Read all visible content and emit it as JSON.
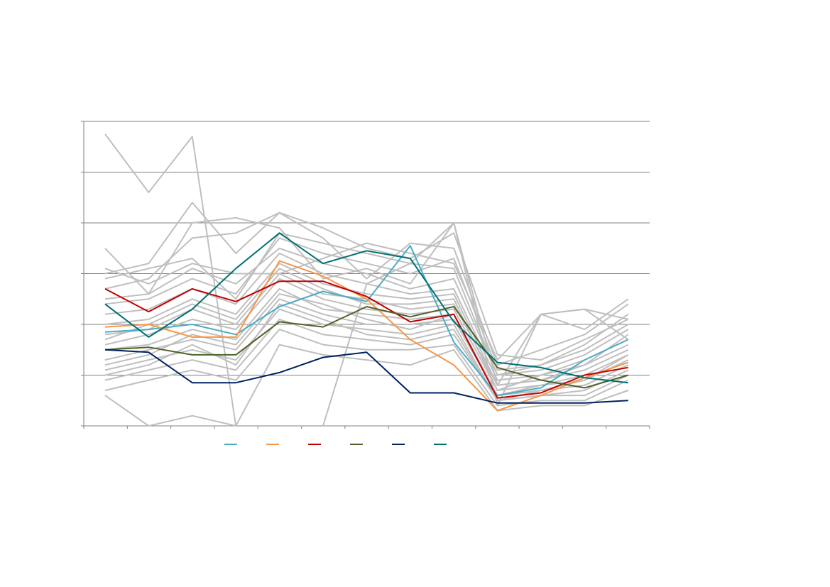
{
  "chart_data": {
    "type": "line",
    "title": "",
    "xlabel": "",
    "ylabel": "",
    "x": [
      1,
      2,
      3,
      4,
      5,
      6,
      7,
      8,
      9,
      10,
      11,
      12,
      13
    ],
    "ylim": [
      0,
      6
    ],
    "y_gridlines": [
      1,
      2,
      3,
      4,
      5,
      6
    ],
    "grid": true,
    "legend_position": "bottom",
    "background_series_color": "#bfbfbf",
    "background_series": [
      [
        5.75,
        4.6,
        5.7,
        0.0,
        0.0,
        0.0,
        2.8,
        3.2,
        4.0,
        0.4,
        2.2,
        2.3,
        1.7
      ],
      [
        3.0,
        3.2,
        4.4,
        3.4,
        4.2,
        3.7,
        2.9,
        3.6,
        3.5,
        1.2,
        1.5,
        1.8,
        2.4
      ],
      [
        3.5,
        2.6,
        4.0,
        4.1,
        3.9,
        2.9,
        3.1,
        2.8,
        4.0,
        0.8,
        2.2,
        2.3,
        2.1
      ],
      [
        2.9,
        3.1,
        3.3,
        2.5,
        3.8,
        3.6,
        3.4,
        3.2,
        3.1,
        1.0,
        1.2,
        1.5,
        2.0
      ],
      [
        2.5,
        2.6,
        3.1,
        2.8,
        3.5,
        3.2,
        3.0,
        2.7,
        2.9,
        1.0,
        1.1,
        1.4,
        1.9
      ],
      [
        2.2,
        2.3,
        2.7,
        2.4,
        3.4,
        3.0,
        2.8,
        2.6,
        2.7,
        0.9,
        1.0,
        1.3,
        1.7
      ],
      [
        2.0,
        2.1,
        2.5,
        2.2,
        3.2,
        2.8,
        2.6,
        2.5,
        2.6,
        0.8,
        0.9,
        1.2,
        1.6
      ],
      [
        1.8,
        1.9,
        2.3,
        2.0,
        3.0,
        2.6,
        2.5,
        2.3,
        2.4,
        0.8,
        0.9,
        1.1,
        1.5
      ],
      [
        1.6,
        1.8,
        2.1,
        1.9,
        2.9,
        2.5,
        2.3,
        2.2,
        2.3,
        0.7,
        0.8,
        1.0,
        1.4
      ],
      [
        1.5,
        1.6,
        1.9,
        1.7,
        2.7,
        2.3,
        2.2,
        2.1,
        2.2,
        0.6,
        0.7,
        0.9,
        1.3
      ],
      [
        1.3,
        1.5,
        1.7,
        1.5,
        2.5,
        2.2,
        2.0,
        2.0,
        2.1,
        0.6,
        0.7,
        0.8,
        1.2
      ],
      [
        1.1,
        1.3,
        1.5,
        1.3,
        2.3,
        2.0,
        1.9,
        1.8,
        2.0,
        0.5,
        0.6,
        0.7,
        1.1
      ],
      [
        0.9,
        1.1,
        1.3,
        1.1,
        2.1,
        1.8,
        1.7,
        1.6,
        1.8,
        0.5,
        0.6,
        0.6,
        1.0
      ],
      [
        0.7,
        0.9,
        1.1,
        0.9,
        1.9,
        1.6,
        1.5,
        1.5,
        1.6,
        0.4,
        0.5,
        0.5,
        0.9
      ],
      [
        0.6,
        0.0,
        0.2,
        0.0,
        1.6,
        1.4,
        1.3,
        1.2,
        1.5,
        0.3,
        0.4,
        0.4,
        0.7
      ],
      [
        2.7,
        2.9,
        3.7,
        3.8,
        4.2,
        3.9,
        3.5,
        3.3,
        3.8,
        1.4,
        1.3,
        1.7,
        2.1
      ],
      [
        2.4,
        2.5,
        2.9,
        2.6,
        3.7,
        3.4,
        3.2,
        3.0,
        3.3,
        1.1,
        1.2,
        1.6,
        2.2
      ],
      [
        1.7,
        2.0,
        2.4,
        2.1,
        3.1,
        2.7,
        2.4,
        2.4,
        2.5,
        0.7,
        1.0,
        1.2,
        1.8
      ],
      [
        1.2,
        1.4,
        1.8,
        1.6,
        2.6,
        2.4,
        2.1,
        1.9,
        2.2,
        0.6,
        0.8,
        0.9,
        1.4
      ],
      [
        1.0,
        1.2,
        1.6,
        1.2,
        2.4,
        2.1,
        1.8,
        1.7,
        1.9,
        0.5,
        0.7,
        0.8,
        1.2
      ],
      [
        3.1,
        2.8,
        3.2,
        3.0,
        3.0,
        3.3,
        3.6,
        3.4,
        3.2,
        1.3,
        2.2,
        1.9,
        2.5
      ]
    ],
    "series": [
      {
        "name": "",
        "color": "#4bacc6",
        "values": [
          1.85,
          1.9,
          2.0,
          1.8,
          2.35,
          2.65,
          2.45,
          3.55,
          1.65,
          0.6,
          0.75,
          1.3,
          1.7
        ]
      },
      {
        "name": "",
        "color": "#f79646",
        "values": [
          1.95,
          2.0,
          1.75,
          1.75,
          3.25,
          2.95,
          2.5,
          1.7,
          1.2,
          0.3,
          0.6,
          0.95,
          1.25
        ]
      },
      {
        "name": "",
        "color": "#c00000",
        "values": [
          2.7,
          2.25,
          2.7,
          2.45,
          2.85,
          2.85,
          2.55,
          2.05,
          2.2,
          0.55,
          0.65,
          1.0,
          1.15
        ]
      },
      {
        "name": "",
        "color": "#4f6228",
        "values": [
          1.5,
          1.55,
          1.4,
          1.4,
          2.05,
          1.95,
          2.35,
          2.15,
          2.35,
          1.15,
          0.9,
          0.75,
          1.0
        ]
      },
      {
        "name": "",
        "color": "#002060",
        "values": [
          1.5,
          1.45,
          0.85,
          0.85,
          1.05,
          1.35,
          1.45,
          0.65,
          0.65,
          0.45,
          0.45,
          0.45,
          0.5
        ]
      },
      {
        "name": "",
        "color": "#007070",
        "values": [
          2.4,
          1.75,
          2.3,
          3.1,
          3.8,
          3.2,
          3.45,
          3.3,
          2.05,
          1.25,
          1.15,
          0.95,
          0.85
        ]
      }
    ]
  }
}
